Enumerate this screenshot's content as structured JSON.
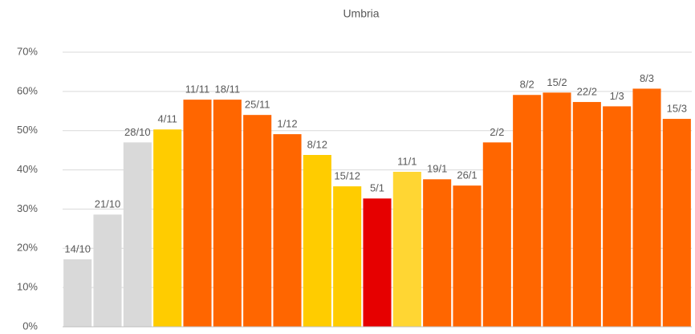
{
  "chart_data": {
    "type": "bar",
    "title": "Umbria",
    "categories": [
      "14/10",
      "21/10",
      "28/10",
      "4/11",
      "11/11",
      "18/11",
      "25/11",
      "1/12",
      "8/12",
      "15/12",
      "5/1",
      "11/1",
      "19/1",
      "26/1",
      "2/2",
      "8/2",
      "15/2",
      "22/2",
      "1/3",
      "8/3",
      "15/3"
    ],
    "values": [
      17.2,
      28.6,
      47,
      50.3,
      57.9,
      57.9,
      54,
      49.1,
      43.8,
      35.8,
      32.7,
      39.5,
      37.6,
      36,
      47,
      59.1,
      59.7,
      57.3,
      56.2,
      60.7,
      53
    ],
    "colors": [
      "#d9d9d9",
      "#d9d9d9",
      "#d9d9d9",
      "#ffcc00",
      "#ff6600",
      "#ff6600",
      "#ff6600",
      "#ff6600",
      "#ffcc00",
      "#ffcc00",
      "#e60000",
      "#ffd633",
      "#ff6600",
      "#ff6600",
      "#ff6600",
      "#ff6600",
      "#ff6600",
      "#ff6600",
      "#ff6600",
      "#ff6600",
      "#ff6600"
    ],
    "ylim": [
      0,
      70
    ],
    "yticks": [
      {
        "value": 0,
        "label": "0%"
      },
      {
        "value": 10,
        "label": "10%"
      },
      {
        "value": 20,
        "label": "20%"
      },
      {
        "value": 30,
        "label": "30%"
      },
      {
        "value": 40,
        "label": "40%"
      },
      {
        "value": 50,
        "label": "50%"
      },
      {
        "value": 60,
        "label": "60%"
      },
      {
        "value": 70,
        "label": "70%"
      }
    ],
    "grid": true
  }
}
